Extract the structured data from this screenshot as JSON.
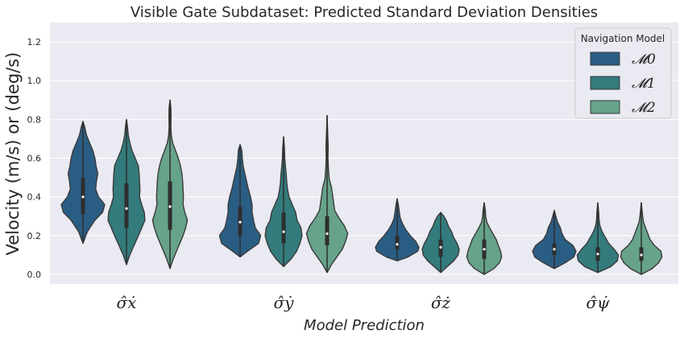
{
  "chart_data": {
    "type": "violin",
    "title": "Visible Gate Subdataset: Predicted Standard Deviation Densities",
    "xlabel": "Model Prediction",
    "ylabel": "Velocity (m/s) or (deg/s)",
    "ylim": [
      -0.05,
      1.3
    ],
    "yticks": [
      "0.0",
      "0.2",
      "0.4",
      "0.6",
      "0.8",
      "1.0",
      "1.2"
    ],
    "grid": true,
    "categories": [
      "σ̂ẋ",
      "σ̂ẏ",
      "σ̂ż",
      "σ̂ψ̇"
    ],
    "legend": {
      "title": "Navigation Model",
      "position": "top-right",
      "entries": [
        "𝓜0",
        "𝓜1",
        "𝓜2"
      ]
    },
    "colors": [
      "#2a5d84",
      "#337b7c",
      "#66a38a"
    ],
    "series": [
      {
        "name": "𝓜0",
        "violins": [
          {
            "min": 0.16,
            "max": 0.79,
            "q1": 0.31,
            "median": 0.4,
            "q3": 0.5,
            "shape": [
              [
                0.16,
                0.0
              ],
              [
                0.22,
                0.2
              ],
              [
                0.28,
                0.55
              ],
              [
                0.32,
                0.9
              ],
              [
                0.36,
                1.0
              ],
              [
                0.4,
                0.72
              ],
              [
                0.44,
                0.58
              ],
              [
                0.48,
                0.62
              ],
              [
                0.52,
                0.68
              ],
              [
                0.56,
                0.6
              ],
              [
                0.6,
                0.55
              ],
              [
                0.64,
                0.45
              ],
              [
                0.68,
                0.3
              ],
              [
                0.72,
                0.16
              ],
              [
                0.76,
                0.08
              ],
              [
                0.79,
                0.0
              ]
            ]
          },
          {
            "min": 0.09,
            "max": 0.67,
            "q1": 0.2,
            "median": 0.27,
            "q3": 0.35,
            "shape": [
              [
                0.09,
                0.0
              ],
              [
                0.12,
                0.35
              ],
              [
                0.16,
                0.85
              ],
              [
                0.2,
                0.95
              ],
              [
                0.24,
                0.7
              ],
              [
                0.28,
                0.62
              ],
              [
                0.32,
                0.55
              ],
              [
                0.36,
                0.55
              ],
              [
                0.4,
                0.48
              ],
              [
                0.44,
                0.38
              ],
              [
                0.48,
                0.3
              ],
              [
                0.52,
                0.22
              ],
              [
                0.56,
                0.14
              ],
              [
                0.6,
                0.1
              ],
              [
                0.64,
                0.08
              ],
              [
                0.67,
                0.0
              ]
            ]
          },
          {
            "min": 0.07,
            "max": 0.39,
            "q1": 0.13,
            "median": 0.155,
            "q3": 0.2,
            "shape": [
              [
                0.07,
                0.0
              ],
              [
                0.09,
                0.5
              ],
              [
                0.12,
                0.95
              ],
              [
                0.14,
                1.0
              ],
              [
                0.17,
                0.85
              ],
              [
                0.2,
                0.6
              ],
              [
                0.23,
                0.4
              ],
              [
                0.26,
                0.25
              ],
              [
                0.29,
                0.14
              ],
              [
                0.32,
                0.1
              ],
              [
                0.36,
                0.05
              ],
              [
                0.39,
                0.0
              ]
            ]
          },
          {
            "min": 0.03,
            "max": 0.33,
            "q1": 0.1,
            "median": 0.13,
            "q3": 0.16,
            "shape": [
              [
                0.03,
                0.0
              ],
              [
                0.06,
                0.5
              ],
              [
                0.09,
                0.9
              ],
              [
                0.12,
                1.0
              ],
              [
                0.15,
                0.85
              ],
              [
                0.18,
                0.5
              ],
              [
                0.21,
                0.35
              ],
              [
                0.24,
                0.28
              ],
              [
                0.27,
                0.15
              ],
              [
                0.3,
                0.07
              ],
              [
                0.33,
                0.0
              ]
            ]
          }
        ]
      },
      {
        "name": "𝓜1",
        "violins": [
          {
            "min": 0.05,
            "max": 0.8,
            "q1": 0.24,
            "median": 0.34,
            "q3": 0.47,
            "shape": [
              [
                0.05,
                0.0
              ],
              [
                0.1,
                0.15
              ],
              [
                0.15,
                0.35
              ],
              [
                0.2,
                0.55
              ],
              [
                0.24,
                0.7
              ],
              [
                0.28,
                0.85
              ],
              [
                0.32,
                0.82
              ],
              [
                0.36,
                0.7
              ],
              [
                0.4,
                0.6
              ],
              [
                0.44,
                0.62
              ],
              [
                0.48,
                0.6
              ],
              [
                0.52,
                0.58
              ],
              [
                0.56,
                0.55
              ],
              [
                0.6,
                0.4
              ],
              [
                0.64,
                0.25
              ],
              [
                0.68,
                0.15
              ],
              [
                0.72,
                0.08
              ],
              [
                0.76,
                0.05
              ],
              [
                0.8,
                0.0
              ]
            ]
          },
          {
            "min": 0.04,
            "max": 0.71,
            "q1": 0.16,
            "median": 0.22,
            "q3": 0.32,
            "shape": [
              [
                0.04,
                0.0
              ],
              [
                0.08,
                0.35
              ],
              [
                0.12,
                0.6
              ],
              [
                0.16,
                0.75
              ],
              [
                0.2,
                0.85
              ],
              [
                0.24,
                0.8
              ],
              [
                0.28,
                0.62
              ],
              [
                0.32,
                0.55
              ],
              [
                0.36,
                0.4
              ],
              [
                0.4,
                0.25
              ],
              [
                0.44,
                0.18
              ],
              [
                0.48,
                0.14
              ],
              [
                0.52,
                0.12
              ],
              [
                0.56,
                0.08
              ],
              [
                0.6,
                0.05
              ],
              [
                0.65,
                0.04
              ],
              [
                0.71,
                0.0
              ]
            ]
          },
          {
            "min": 0.01,
            "max": 0.32,
            "q1": 0.09,
            "median": 0.14,
            "q3": 0.18,
            "shape": [
              [
                0.01,
                0.0
              ],
              [
                0.04,
                0.3
              ],
              [
                0.07,
                0.6
              ],
              [
                0.1,
                0.8
              ],
              [
                0.13,
                0.85
              ],
              [
                0.16,
                0.75
              ],
              [
                0.19,
                0.6
              ],
              [
                0.22,
                0.5
              ],
              [
                0.25,
                0.35
              ],
              [
                0.28,
                0.25
              ],
              [
                0.3,
                0.15
              ],
              [
                0.32,
                0.0
              ]
            ]
          },
          {
            "min": 0.01,
            "max": 0.37,
            "q1": 0.07,
            "median": 0.105,
            "q3": 0.14,
            "shape": [
              [
                0.01,
                0.0
              ],
              [
                0.04,
                0.6
              ],
              [
                0.07,
                0.9
              ],
              [
                0.1,
                0.95
              ],
              [
                0.13,
                0.75
              ],
              [
                0.16,
                0.5
              ],
              [
                0.19,
                0.35
              ],
              [
                0.22,
                0.2
              ],
              [
                0.25,
                0.1
              ],
              [
                0.28,
                0.06
              ],
              [
                0.32,
                0.04
              ],
              [
                0.37,
                0.0
              ]
            ]
          }
        ]
      },
      {
        "name": "𝓜2",
        "violins": [
          {
            "min": 0.03,
            "max": 0.9,
            "q1": 0.23,
            "median": 0.35,
            "q3": 0.48,
            "shape": [
              [
                0.03,
                0.0
              ],
              [
                0.08,
                0.15
              ],
              [
                0.12,
                0.3
              ],
              [
                0.16,
                0.45
              ],
              [
                0.2,
                0.6
              ],
              [
                0.24,
                0.72
              ],
              [
                0.28,
                0.8
              ],
              [
                0.32,
                0.68
              ],
              [
                0.36,
                0.6
              ],
              [
                0.4,
                0.62
              ],
              [
                0.44,
                0.6
              ],
              [
                0.48,
                0.58
              ],
              [
                0.52,
                0.55
              ],
              [
                0.56,
                0.48
              ],
              [
                0.6,
                0.38
              ],
              [
                0.64,
                0.25
              ],
              [
                0.68,
                0.12
              ],
              [
                0.72,
                0.06
              ],
              [
                0.76,
                0.04
              ],
              [
                0.82,
                0.05
              ],
              [
                0.86,
                0.04
              ],
              [
                0.9,
                0.0
              ]
            ]
          },
          {
            "min": 0.01,
            "max": 0.82,
            "q1": 0.15,
            "median": 0.21,
            "q3": 0.3,
            "shape": [
              [
                0.01,
                0.0
              ],
              [
                0.05,
                0.2
              ],
              [
                0.09,
                0.45
              ],
              [
                0.13,
                0.7
              ],
              [
                0.17,
                0.85
              ],
              [
                0.21,
                0.95
              ],
              [
                0.25,
                0.8
              ],
              [
                0.29,
                0.55
              ],
              [
                0.33,
                0.35
              ],
              [
                0.37,
                0.3
              ],
              [
                0.41,
                0.25
              ],
              [
                0.45,
                0.2
              ],
              [
                0.49,
                0.1
              ],
              [
                0.55,
                0.06
              ],
              [
                0.6,
                0.04
              ],
              [
                0.66,
                0.05
              ],
              [
                0.72,
                0.03
              ],
              [
                0.82,
                0.0
              ]
            ]
          },
          {
            "min": 0.0,
            "max": 0.37,
            "q1": 0.08,
            "median": 0.13,
            "q3": 0.18,
            "shape": [
              [
                0.0,
                0.0
              ],
              [
                0.03,
                0.45
              ],
              [
                0.06,
                0.7
              ],
              [
                0.09,
                0.8
              ],
              [
                0.12,
                0.75
              ],
              [
                0.15,
                0.65
              ],
              [
                0.18,
                0.55
              ],
              [
                0.21,
                0.4
              ],
              [
                0.24,
                0.25
              ],
              [
                0.27,
                0.12
              ],
              [
                0.3,
                0.07
              ],
              [
                0.33,
                0.05
              ],
              [
                0.37,
                0.0
              ]
            ]
          },
          {
            "min": 0.0,
            "max": 0.37,
            "q1": 0.07,
            "median": 0.1,
            "q3": 0.14,
            "shape": [
              [
                0.0,
                0.0
              ],
              [
                0.03,
                0.5
              ],
              [
                0.06,
                0.8
              ],
              [
                0.09,
                0.95
              ],
              [
                0.12,
                0.9
              ],
              [
                0.15,
                0.6
              ],
              [
                0.18,
                0.4
              ],
              [
                0.21,
                0.3
              ],
              [
                0.24,
                0.2
              ],
              [
                0.27,
                0.1
              ],
              [
                0.31,
                0.05
              ],
              [
                0.37,
                0.0
              ]
            ]
          }
        ]
      }
    ]
  }
}
